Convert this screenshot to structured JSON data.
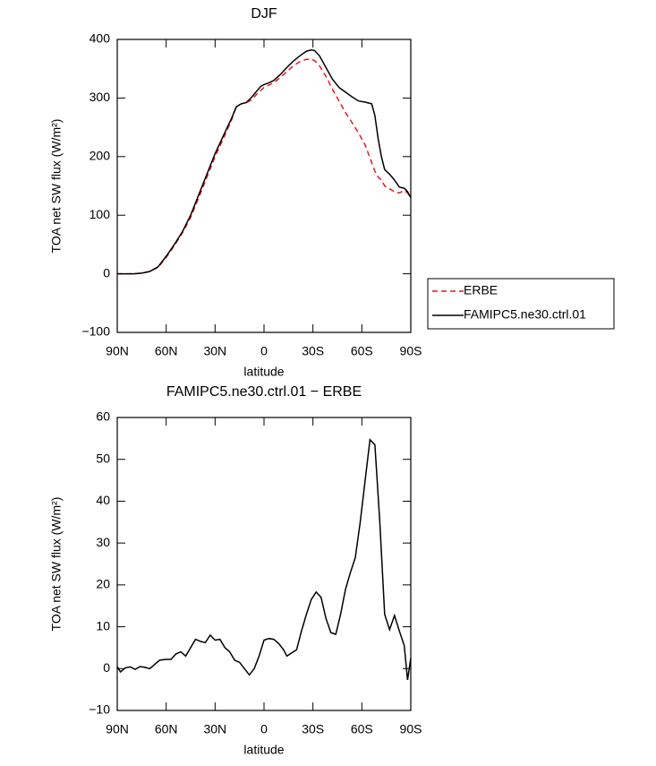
{
  "chart_data": [
    {
      "type": "line",
      "title": "DJF",
      "y_label": "TOA net SW flux (W/m²)",
      "x_label": "latitude",
      "x": [
        90,
        85,
        80,
        75,
        70,
        65,
        60,
        55,
        50,
        45,
        40,
        35,
        30,
        25,
        20,
        17,
        14,
        11,
        8,
        5,
        2,
        0,
        -3,
        -6,
        -10,
        -14,
        -18,
        -22,
        -26,
        -29,
        -31,
        -34,
        -38,
        -42,
        -46,
        -50,
        -54,
        -58,
        -62,
        -66,
        -68,
        -70,
        -72,
        -74,
        -77,
        -80,
        -83,
        -86,
        -88,
        -90
      ],
      "series": [
        {
          "name": "ERBE",
          "color": "#e41a1c",
          "dashed": true,
          "values": [
            0,
            0,
            0,
            1,
            4,
            11,
            28,
            48,
            70,
            96,
            130,
            165,
            200,
            230,
            262,
            285,
            290,
            292,
            296,
            305,
            313,
            318,
            322,
            326,
            335,
            345,
            355,
            362,
            366,
            366,
            364,
            355,
            337,
            315,
            295,
            275,
            258,
            240,
            220,
            190,
            175,
            165,
            160,
            150,
            145,
            140,
            138,
            142,
            138,
            130
          ]
        },
        {
          "name": "FAMIPC5.ne30.ctrl.01",
          "color": "#000000",
          "dashed": false,
          "values": [
            0,
            0,
            0,
            1,
            4,
            12,
            30,
            50,
            72,
            100,
            135,
            170,
            205,
            235,
            265,
            285,
            290,
            292,
            300,
            310,
            320,
            323,
            326,
            330,
            340,
            352,
            363,
            372,
            380,
            382,
            381,
            372,
            352,
            332,
            318,
            310,
            302,
            295,
            293,
            290,
            270,
            230,
            200,
            178,
            170,
            160,
            148,
            146,
            140,
            130
          ]
        }
      ],
      "xlim": [
        90,
        -90
      ],
      "xticks": [
        {
          "value": 90,
          "label": "90N"
        },
        {
          "value": 60,
          "label": "60N"
        },
        {
          "value": 30,
          "label": "30N"
        },
        0,
        {
          "value": -30,
          "label": "30S"
        },
        {
          "value": -60,
          "label": "60S"
        },
        {
          "value": -90,
          "label": "90S"
        }
      ],
      "ylim": [
        -100,
        400
      ],
      "yticks": [
        {
          "value": -100,
          "label": "−100"
        },
        0,
        100,
        200,
        300,
        400
      ],
      "legend": "right"
    },
    {
      "type": "line",
      "title": "FAMIPC5.ne30.ctrl.01 − ERBE",
      "y_label": "TOA net SW flux (W/m²)",
      "x_label": "latitude",
      "x": [
        90,
        88,
        85,
        82,
        79,
        76,
        73,
        70,
        67,
        64,
        60,
        57,
        54,
        51,
        48,
        45,
        42,
        39,
        36,
        33,
        30,
        27,
        24,
        21,
        18,
        15,
        12,
        9,
        6,
        3,
        0,
        -3,
        -6,
        -9,
        -12,
        -14,
        -18,
        -20,
        -23,
        -26,
        -29,
        -32,
        -35,
        -38,
        -41,
        -44,
        -47,
        -50,
        -53,
        -56,
        -59,
        -62,
        -65,
        -68,
        -71,
        -74,
        -77,
        -80,
        -83,
        -86,
        -88,
        -90
      ],
      "values": [
        0.5,
        -0.8,
        0.2,
        0.4,
        -0.2,
        0.5,
        0.3,
        0,
        1,
        2,
        2.2,
        2.2,
        3.5,
        4,
        3,
        5,
        7,
        6.5,
        6.2,
        8,
        6.8,
        7,
        5,
        4,
        2,
        1.5,
        0,
        -1.5,
        0,
        3,
        6.8,
        7.2,
        7,
        6,
        4.5,
        3,
        4,
        4.5,
        9,
        13,
        16.5,
        18.3,
        17,
        12,
        8.6,
        8.2,
        13,
        19,
        23,
        26.5,
        35,
        45,
        54.7,
        53.5,
        35,
        13,
        9.3,
        12.7,
        9,
        5.5,
        -2.7,
        2.5
      ],
      "color": "#000000",
      "xlim": [
        90,
        -90
      ],
      "xticks": [
        {
          "value": 90,
          "label": "90N"
        },
        {
          "value": 60,
          "label": "60N"
        },
        {
          "value": 30,
          "label": "30N"
        },
        0,
        {
          "value": -30,
          "label": "30S"
        },
        {
          "value": -60,
          "label": "60S"
        },
        {
          "value": -90,
          "label": "90S"
        }
      ],
      "ylim": [
        -10,
        60
      ],
      "yticks": [
        {
          "value": -10,
          "label": "−10"
        },
        0,
        10,
        20,
        30,
        40,
        50,
        60
      ]
    }
  ]
}
